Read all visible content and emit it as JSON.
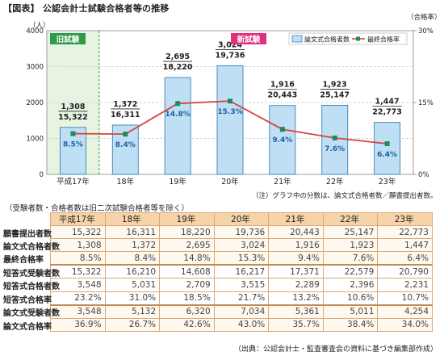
{
  "title": "【図表】 公認会計士試験合格者等の推移",
  "chart_data": {
    "type": "bar",
    "categories": [
      "平成17年",
      "18年",
      "19年",
      "20年",
      "21年",
      "22年",
      "23年"
    ],
    "left_axis": {
      "unit": "（人）",
      "ticks": [
        "0",
        "1000",
        "2000",
        "3000",
        "4000"
      ],
      "ylim": [
        0,
        4000
      ]
    },
    "right_axis": {
      "unit": "（合格率）",
      "ticks": [
        "0%",
        "15%",
        "30%"
      ],
      "ylim": [
        0,
        30
      ]
    },
    "bars": {
      "name": "論文式合格者数",
      "values": [
        1308,
        1372,
        2695,
        3024,
        1916,
        1923,
        1447
      ]
    },
    "applicants": [
      15322,
      16311,
      18220,
      19736,
      20443,
      25147,
      22773
    ],
    "line": {
      "name": "最終合格率",
      "values": [
        8.5,
        8.4,
        14.8,
        15.3,
        9.4,
        7.6,
        6.4
      ],
      "labels": [
        "8.5%",
        "8.4%",
        "14.8%",
        "15.3%",
        "9.4%",
        "7.6%",
        "6.4%"
      ]
    },
    "bar_labels_top": [
      "1,308",
      "1,372",
      "2,695",
      "3,024",
      "1,916",
      "1,923",
      "1,447"
    ],
    "bar_labels_bottom": [
      "15,322",
      "16,311",
      "18,220",
      "19,736",
      "20,443",
      "25,147",
      "22,773"
    ],
    "old_exam_label": "旧試験",
    "new_exam_label": "新試験",
    "colors": {
      "bar_fill": "#bfe0f4",
      "bar_stroke": "#3a7fb8",
      "line": "#d8413f",
      "marker": "#1f8a5c",
      "old_band": "#e8f4e2",
      "old_label_bg": "#2f9a47",
      "new_label_bg": "#e0317e"
    },
    "grid": true
  },
  "chart_note": "（注）グラフ中の分数は、論文式合格者数／願書提出者数。",
  "table_caption": "（受験者数・合格者数は旧二次試験合格者等を除く）",
  "table": {
    "headers": [
      "",
      "平成17年",
      "18年",
      "19年",
      "20年",
      "21年",
      "22年",
      "23年"
    ],
    "rows": [
      {
        "label": "願書提出者数",
        "values": [
          "15,322",
          "16,311",
          "18,220",
          "19,736",
          "20,443",
          "25,147",
          "22,773"
        ],
        "group": "g1"
      },
      {
        "label": "論文式合格者数",
        "values": [
          "1,308",
          "1,372",
          "2,695",
          "3,024",
          "1,916",
          "1,923",
          "1,447"
        ],
        "group": "g1"
      },
      {
        "label": "最終合格率",
        "values": [
          "8.5%",
          "8.4%",
          "14.8%",
          "15.3%",
          "9.4%",
          "7.6%",
          "6.4%"
        ],
        "group": "g1"
      },
      {
        "label": "短答式受験者数",
        "values": [
          "15,322",
          "16,210",
          "14,608",
          "16,217",
          "17,371",
          "22,579",
          "20,790"
        ],
        "group": "g2"
      },
      {
        "label": "短答式合格者数",
        "values": [
          "3,548",
          "5,031",
          "2,709",
          "3,515",
          "2,289",
          "2,396",
          "2,231"
        ],
        "group": "g2"
      },
      {
        "label": "短答式合格率",
        "values": [
          "23.2%",
          "31.0%",
          "18.5%",
          "21.7%",
          "13.2%",
          "10.6%",
          "10.7%"
        ],
        "group": "g2"
      },
      {
        "label": "論文式受験者数",
        "values": [
          "3,548",
          "5,132",
          "6,320",
          "7,034",
          "5,361",
          "5,011",
          "4,254"
        ],
        "group": "g3"
      },
      {
        "label": "論文式合格率",
        "values": [
          "36.9%",
          "26.7%",
          "42.6%",
          "43.0%",
          "35.7%",
          "38.4%",
          "34.0%"
        ],
        "group": "g3"
      }
    ]
  },
  "source": "（出典：公認会計士・監査審査会の資料に基づき編集部作成）"
}
